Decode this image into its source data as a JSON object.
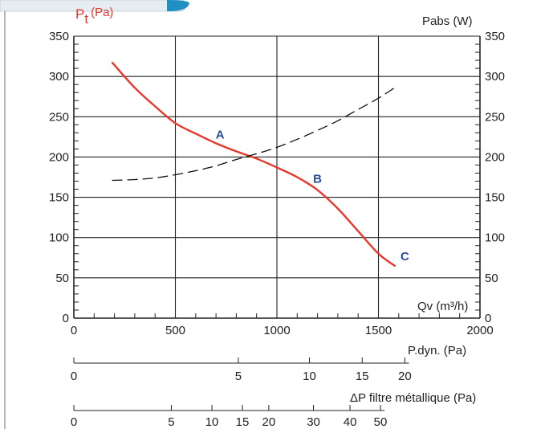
{
  "chart_data": {
    "type": "line",
    "x_axis": {
      "label": "Qv (m³/h)",
      "range": [
        0,
        2000
      ],
      "ticks": [
        0,
        500,
        1000,
        1500,
        2000
      ]
    },
    "y_left": {
      "label_main": "P",
      "label_sub": "t",
      "label_unit": "(Pa)",
      "range": [
        0,
        350
      ],
      "ticks": [
        0,
        50,
        100,
        150,
        200,
        250,
        300,
        350
      ]
    },
    "y_right": {
      "label": "Pabs (W)",
      "range": [
        0,
        350
      ],
      "ticks": [
        0,
        50,
        100,
        150,
        200,
        250,
        300,
        350
      ]
    },
    "grid": true,
    "series": [
      {
        "style": "solid",
        "color": "#e8372a",
        "x": [
          190,
          300,
          400,
          500,
          600,
          700,
          800,
          900,
          1000,
          1100,
          1200,
          1300,
          1400,
          1500,
          1580
        ],
        "y": [
          317,
          286,
          263,
          242,
          229,
          217,
          207,
          198,
          187,
          175,
          159,
          136,
          108,
          80,
          65
        ]
      },
      {
        "style": "dashed",
        "color": "#111111",
        "x": [
          190,
          300,
          400,
          500,
          600,
          700,
          800,
          900,
          1000,
          1100,
          1200,
          1300,
          1400,
          1500,
          1580
        ],
        "y": [
          171,
          172,
          174,
          178,
          183,
          189,
          197,
          204,
          212,
          222,
          233,
          245,
          259,
          273,
          286
        ]
      }
    ],
    "annotations": [
      {
        "text": "A",
        "x": 720,
        "y": 228,
        "color": "#2e4c9c"
      },
      {
        "text": "B",
        "x": 1200,
        "y": 173,
        "color": "#2e4c9c"
      },
      {
        "text": "C",
        "x": 1630,
        "y": 77,
        "color": "#2e4c9c"
      }
    ],
    "secondary_scales": [
      {
        "label": "P.dyn. (Pa)",
        "ticks": [
          {
            "label": "0",
            "value": 0
          },
          {
            "label": "5",
            "value": 5
          },
          {
            "label": "10",
            "value": 10
          },
          {
            "label": "15",
            "value": 15
          },
          {
            "label": "20",
            "value": 20
          }
        ],
        "qv_at_tick": [
          0,
          810,
          1160,
          1420,
          1630
        ]
      },
      {
        "label": "ΔP filtre métallique (Pa)",
        "ticks": [
          {
            "label": "0",
            "value": 0
          },
          {
            "label": "5",
            "value": 5
          },
          {
            "label": "10",
            "value": 10
          },
          {
            "label": "15",
            "value": 15
          },
          {
            "label": "20",
            "value": 20
          },
          {
            "label": "30",
            "value": 30
          },
          {
            "label": "40",
            "value": 40
          },
          {
            "label": "50",
            "value": 50
          }
        ],
        "qv_at_tick": [
          0,
          480,
          680,
          830,
          960,
          1180,
          1360,
          1510
        ]
      }
    ]
  }
}
